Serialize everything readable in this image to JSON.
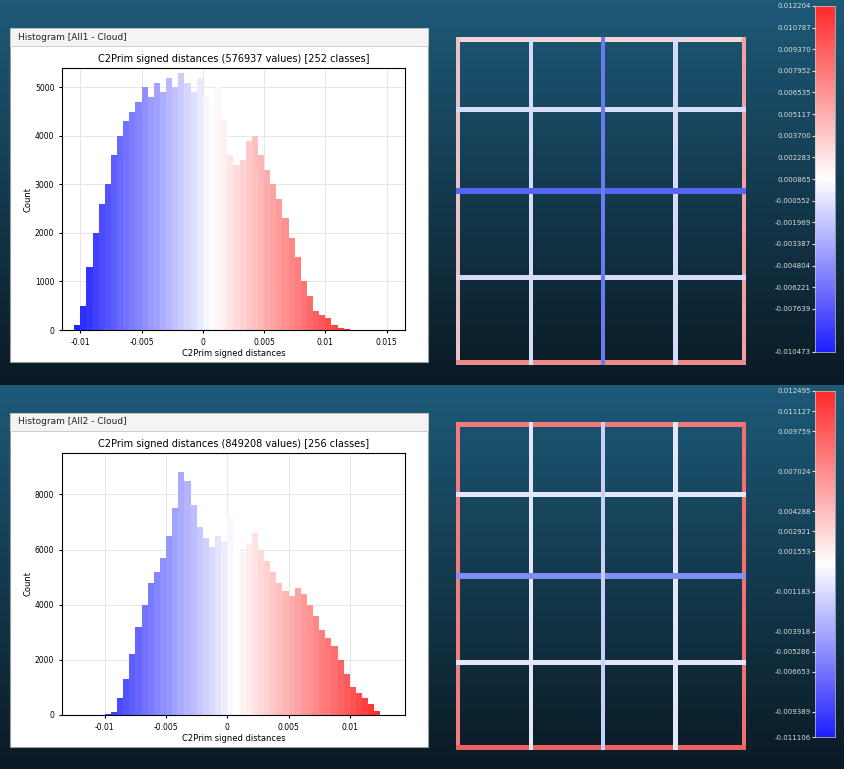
{
  "chart_data": [
    {
      "type": "histogram",
      "window_title": "Histogram [All1 - Cloud]",
      "title": "C2Prim signed distances (576937 values) [252 classes]",
      "x_label": "C2Prim signed distances",
      "y_label": "Count",
      "grid": true,
      "bins": [
        -0.0105,
        -0.01,
        -0.0095,
        -0.009,
        -0.0085,
        -0.008,
        -0.0075,
        -0.007,
        -0.0065,
        -0.006,
        -0.0055,
        -0.005,
        -0.0045,
        -0.004,
        -0.0035,
        -0.003,
        -0.0025,
        -0.002,
        -0.0015,
        -0.001,
        -0.0005,
        0.0,
        0.0005,
        0.001,
        0.0015,
        0.002,
        0.0025,
        0.003,
        0.0035,
        0.004,
        0.0045,
        0.005,
        0.0055,
        0.006,
        0.0065,
        0.007,
        0.0075,
        0.008,
        0.0085,
        0.009,
        0.0095,
        0.01,
        0.0105,
        0.011,
        0.0115,
        0.012,
        0.0125
      ],
      "counts": [
        100,
        500,
        1300,
        2000,
        2600,
        3000,
        3600,
        4000,
        4300,
        4500,
        4700,
        5000,
        4800,
        5100,
        4900,
        5200,
        5000,
        5300,
        5100,
        4900,
        5200,
        4800,
        4600,
        5000,
        4300,
        3600,
        3400,
        3500,
        3900,
        4000,
        3600,
        3300,
        3000,
        2700,
        2300,
        1900,
        1500,
        1000,
        700,
        400,
        300,
        250,
        100,
        50,
        20,
        5
      ],
      "xlim": [
        -0.0115,
        0.0165
      ],
      "xticks": [
        -0.01,
        -0.005,
        0,
        0.005,
        0.01,
        0.015
      ],
      "ylim": [
        0,
        5400
      ],
      "yticks": [
        0,
        1000,
        2000,
        3000,
        4000,
        5000
      ],
      "colorbar": {
        "lim": [
          -0.010473,
          0.012204
        ],
        "ticks": [
          {
            "value": 0.012204,
            "label": "0.012204"
          },
          {
            "value": 0.010787,
            "label": "0.010787"
          },
          {
            "value": 0.00937,
            "label": "0.009370"
          },
          {
            "value": 0.007952,
            "label": "0.007952"
          },
          {
            "value": 0.006535,
            "label": "0.006535"
          },
          {
            "value": 0.005117,
            "label": "0.005117"
          },
          {
            "value": 0.0037,
            "label": "0.003700"
          },
          {
            "value": 0.002283,
            "label": "0.002283"
          },
          {
            "value": 0.000865,
            "label": "0.000865"
          },
          {
            "value": -0.000552,
            "label": "-0.000552"
          },
          {
            "value": -0.001969,
            "label": "-0.001969"
          },
          {
            "value": -0.003387,
            "label": "-0.003387"
          },
          {
            "value": -0.004804,
            "label": "-0.004804"
          },
          {
            "value": -0.006221,
            "label": "-0.006221"
          },
          {
            "value": -0.007639,
            "label": "-0.007639"
          },
          {
            "value": -0.010473,
            "label": "-0.010473"
          }
        ]
      }
    },
    {
      "type": "histogram",
      "window_title": "Histogram [All2 - Cloud]",
      "title": "C2Prim signed distances (849208 values) [256 classes]",
      "x_label": "C2Prim signed distances",
      "y_label": "Count",
      "grid": true,
      "bins": [
        -0.011,
        -0.0105,
        -0.01,
        -0.0095,
        -0.009,
        -0.0085,
        -0.008,
        -0.0075,
        -0.007,
        -0.0065,
        -0.006,
        -0.0055,
        -0.005,
        -0.0045,
        -0.004,
        -0.0035,
        -0.003,
        -0.0025,
        -0.002,
        -0.0015,
        -0.001,
        -0.0005,
        0.0,
        0.0005,
        0.001,
        0.0015,
        0.002,
        0.0025,
        0.003,
        0.0035,
        0.004,
        0.0045,
        0.005,
        0.0055,
        0.006,
        0.0065,
        0.007,
        0.0075,
        0.008,
        0.0085,
        0.009,
        0.0095,
        0.01,
        0.0105,
        0.011,
        0.0115,
        0.012,
        0.0125
      ],
      "counts": [
        5,
        10,
        30,
        100,
        600,
        1300,
        2200,
        3200,
        4000,
        4800,
        5200,
        5700,
        6500,
        7500,
        8800,
        8500,
        7600,
        6800,
        6400,
        6100,
        6500,
        6300,
        7200,
        6000,
        5900,
        6200,
        6600,
        6000,
        5600,
        5200,
        4800,
        4500,
        4300,
        4600,
        4400,
        4000,
        3600,
        3100,
        2800,
        2500,
        2000,
        1500,
        1000,
        800,
        600,
        400,
        150
      ],
      "xlim": [
        -0.0135,
        0.0145
      ],
      "xticks": [
        -0.01,
        -0.005,
        0,
        0.005,
        0.01
      ],
      "ylim": [
        0,
        9500
      ],
      "yticks": [
        0,
        2000,
        4000,
        6000,
        8000
      ],
      "colorbar": {
        "lim": [
          -0.011106,
          0.012495
        ],
        "ticks": [
          {
            "value": 0.012495,
            "label": "0.012495"
          },
          {
            "value": 0.011127,
            "label": "0.011127"
          },
          {
            "value": 0.009759,
            "label": "0.009759"
          },
          {
            "value": 0.007024,
            "label": "0.007024"
          },
          {
            "value": 0.004288,
            "label": "0.004288"
          },
          {
            "value": 0.002921,
            "label": "0.002921"
          },
          {
            "value": 0.001553,
            "label": "0.001553"
          },
          {
            "value": -0.001183,
            "label": "-0.001183"
          },
          {
            "value": -0.003918,
            "label": "-0.003918"
          },
          {
            "value": -0.005286,
            "label": "-0.005286"
          },
          {
            "value": -0.006653,
            "label": "-0.006653"
          },
          {
            "value": -0.009389,
            "label": "-0.009389"
          },
          {
            "value": -0.011106,
            "label": "-0.011106"
          }
        ]
      }
    }
  ]
}
